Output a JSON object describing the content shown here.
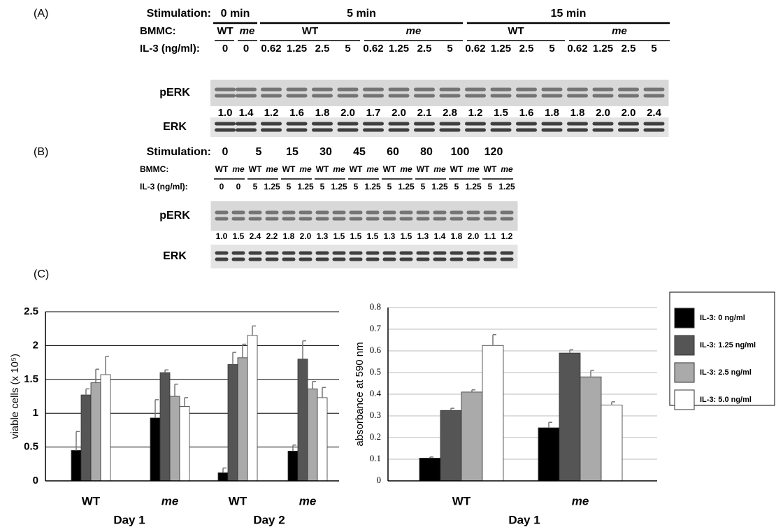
{
  "panel_a": {
    "label": "(A)",
    "stimulation_label": "Stimulation:",
    "stimulation": [
      "0 min",
      "5 min",
      "15 min"
    ],
    "bmmc_label": "BMMC:",
    "bmmc": [
      "WT",
      "me",
      "WT",
      "me",
      "WT",
      "me"
    ],
    "il3_label": "IL-3 (ng/ml):",
    "il3": [
      "0",
      "0",
      "0.62",
      "1.25",
      "2.5",
      "5",
      "0.62",
      "1.25",
      "2.5",
      "5",
      "0.62",
      "1.25",
      "2.5",
      "5",
      "0.62",
      "1.25",
      "2.5",
      "5"
    ],
    "perk_label": "pERK",
    "perk": [
      "1.0",
      "1.4",
      "1.2",
      "1.6",
      "1.8",
      "2.0",
      "1.7",
      "2.0",
      "2.1",
      "2.8",
      "1.2",
      "1.5",
      "1.6",
      "1.8",
      "1.8",
      "2.0",
      "2.0",
      "2.4"
    ],
    "erk_label": "ERK"
  },
  "panel_b": {
    "label": "(B)",
    "stimulation_label": "Stimulation:",
    "stimulation": [
      "0",
      "5",
      "15",
      "30",
      "45",
      "60",
      "80",
      "100",
      "120"
    ],
    "bmmc_label": "BMMC:",
    "bmmc": [
      "WT",
      "me",
      "WT",
      "me",
      "WT",
      "me",
      "WT",
      "me",
      "WT",
      "me",
      "WT",
      "me",
      "WT",
      "me",
      "WT",
      "me",
      "WT",
      "me"
    ],
    "il3_label": "IL-3 (ng/ml):",
    "il3": [
      "0",
      "0",
      "5",
      "1.25",
      "5",
      "1.25",
      "5",
      "1.25",
      "5",
      "1.25",
      "5",
      "1.25",
      "5",
      "1.25",
      "5",
      "1.25",
      "5",
      "1.25"
    ],
    "perk_label": "pERK",
    "perk": [
      "1.0",
      "1.5",
      "2.4",
      "2.2",
      "1.8",
      "2.0",
      "1.3",
      "1.5",
      "1.5",
      "1.5",
      "1.3",
      "1.5",
      "1.3",
      "1.4",
      "1.8",
      "2.0",
      "1.1",
      "1.2"
    ],
    "erk_label": "ERK"
  },
  "panel_c": {
    "label": "(C)"
  },
  "chart_data": [
    {
      "type": "bar",
      "ylabel": "viable cells (x 10⁵)",
      "categories": [
        "WT",
        "me",
        "WT",
        "me"
      ],
      "group_labels": [
        "Day 1",
        "Day 2"
      ],
      "ylim": [
        0,
        2.5
      ],
      "yticks": [
        0,
        0.5,
        1,
        1.5,
        2,
        2.5
      ],
      "grid": true,
      "series": [
        {
          "color": "#000000",
          "values": [
            0.45,
            0.93,
            0.12,
            0.44
          ],
          "errors": [
            0.28,
            0.27,
            0.07,
            0.09
          ]
        },
        {
          "color": "#555555",
          "values": [
            1.27,
            1.6,
            1.72,
            1.8
          ],
          "errors": [
            0.09,
            0.04,
            0.18,
            0.27
          ]
        },
        {
          "color": "#aaaaaa",
          "values": [
            1.45,
            1.25,
            1.82,
            1.36
          ],
          "errors": [
            0.2,
            0.18,
            0.2,
            0.11
          ]
        },
        {
          "color": "#ffffff",
          "values": [
            1.57,
            1.1,
            2.15,
            1.23
          ],
          "errors": [
            0.27,
            0.13,
            0.14,
            0.15
          ]
        }
      ]
    },
    {
      "type": "bar",
      "ylabel": "absorbance at 590 nm",
      "categories": [
        "WT",
        "me"
      ],
      "group_labels": [
        "Day 1"
      ],
      "ylim": [
        0,
        0.8
      ],
      "yticks": [
        0,
        0.1,
        0.2,
        0.3,
        0.4,
        0.5,
        0.6,
        0.7,
        0.8
      ],
      "grid": true,
      "series": [
        {
          "name": "IL-3: 0 ng/ml",
          "color": "#000000",
          "values": [
            0.105,
            0.245
          ],
          "errors": [
            0.005,
            0.025
          ]
        },
        {
          "name": "IL-3: 1.25 ng/ml",
          "color": "#555555",
          "values": [
            0.325,
            0.59
          ],
          "errors": [
            0.01,
            0.015
          ]
        },
        {
          "name": "IL-3: 2.5 ng/ml",
          "color": "#aaaaaa",
          "values": [
            0.41,
            0.48
          ],
          "errors": [
            0.01,
            0.03
          ]
        },
        {
          "name": "IL-3: 5.0 ng/ml",
          "color": "#ffffff",
          "values": [
            0.625,
            0.35
          ],
          "errors": [
            0.05,
            0.015
          ]
        }
      ]
    }
  ]
}
